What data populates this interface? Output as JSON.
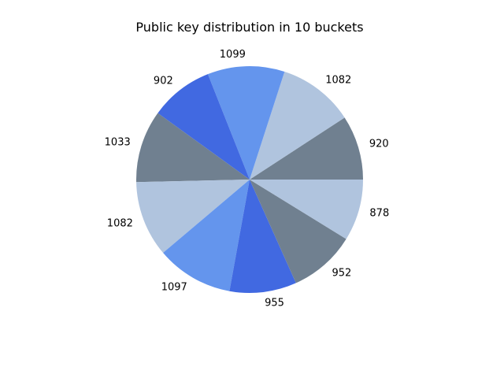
{
  "chart_data": {
    "type": "pie",
    "title": "Public key distribution in 10 buckets",
    "values": [
      920,
      1082,
      1099,
      902,
      1033,
      1082,
      1097,
      955,
      952,
      878
    ],
    "labels": [
      "920",
      "1082",
      "1099",
      "902",
      "1033",
      "1082",
      "1097",
      "955",
      "952",
      "878"
    ],
    "colors": [
      "#708090",
      "#b0c4de",
      "#6495ed",
      "#4169e1",
      "#708090",
      "#b0c4de",
      "#6495ed",
      "#4169e1",
      "#708090",
      "#b0c4de"
    ],
    "start_angle_deg": 0,
    "direction": "counterclockwise"
  }
}
